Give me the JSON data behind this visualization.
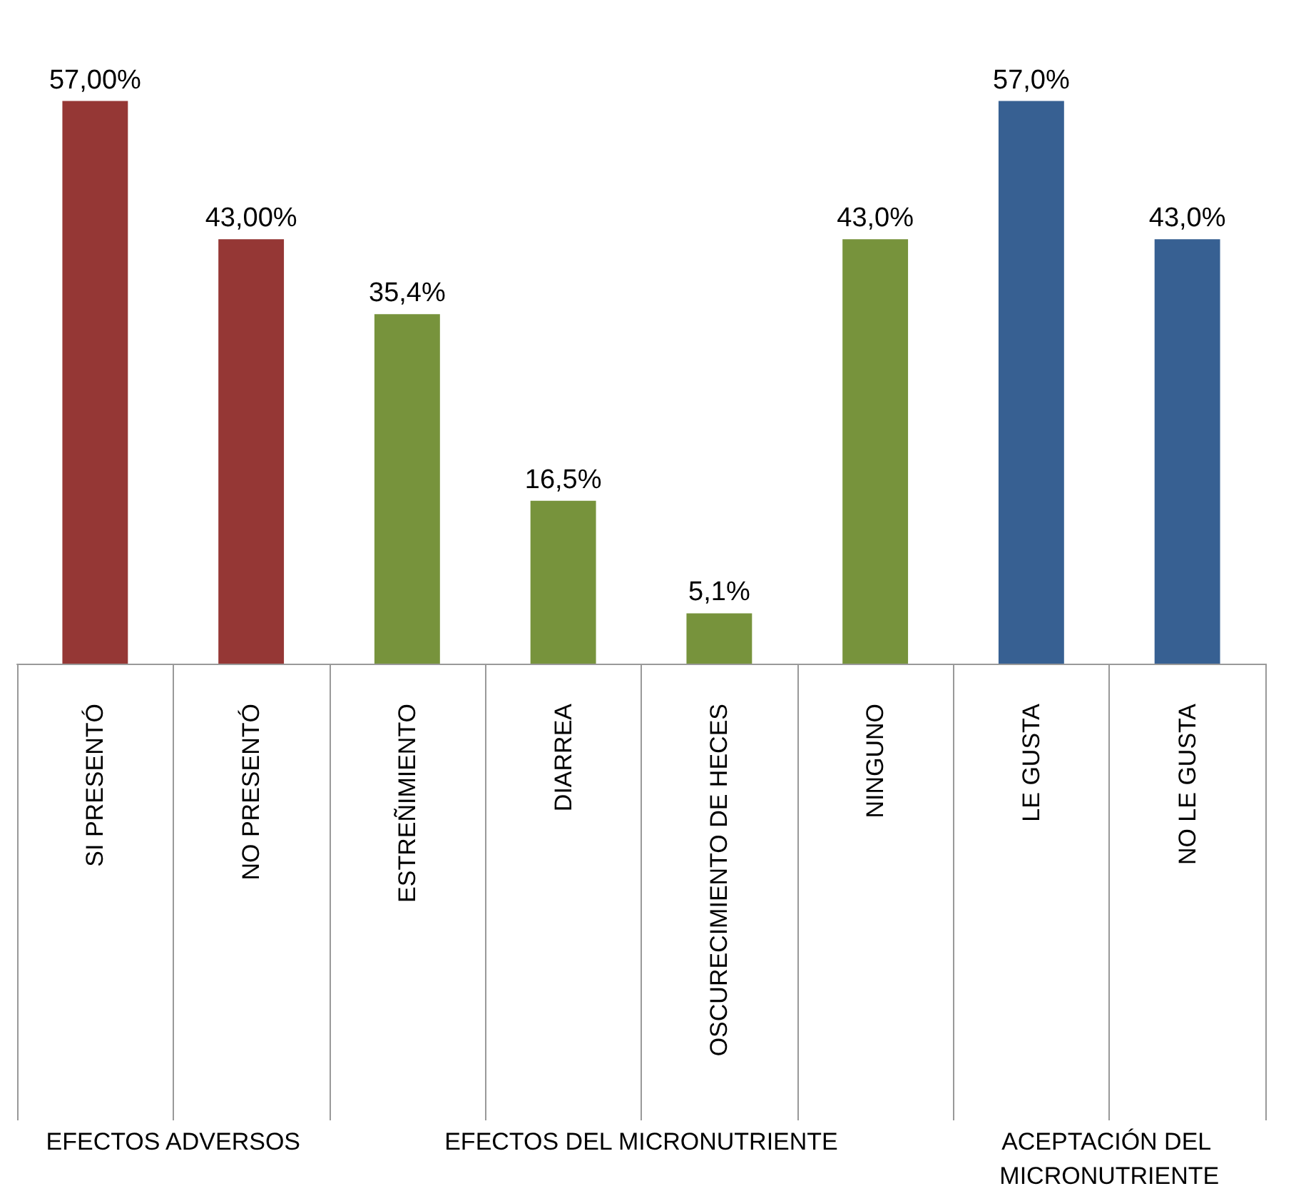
{
  "chart_data": {
    "type": "bar",
    "categories": [
      "SI PRESENTÓ",
      "NO PRESENTÓ",
      "ESTREÑIMIENTO",
      "DIARREA",
      "OSCURECIMIENTO DE HECES",
      "NINGUNO",
      "LE GUSTA",
      "NO LE GUSTA"
    ],
    "values": [
      57,
      43,
      35.4,
      16.5,
      5.1,
      43,
      57,
      43
    ],
    "colors": [
      "#953735",
      "#953735",
      "#77933c",
      "#77933c",
      "#77933c",
      "#77933c",
      "#376092",
      "#376092"
    ],
    "value_labels": [
      "57,00%",
      "43,00%",
      "35,4%",
      "16,5%",
      "5,1%",
      "43,0%",
      "57,0%",
      "43,0%"
    ],
    "annotations": [
      "EFECTOS ADVERSOS",
      "EFECTOS DEL MICRONUTRIENTE",
      "ACEPTACIÓN DEL MICRONUTRIENTE"
    ]
  }
}
